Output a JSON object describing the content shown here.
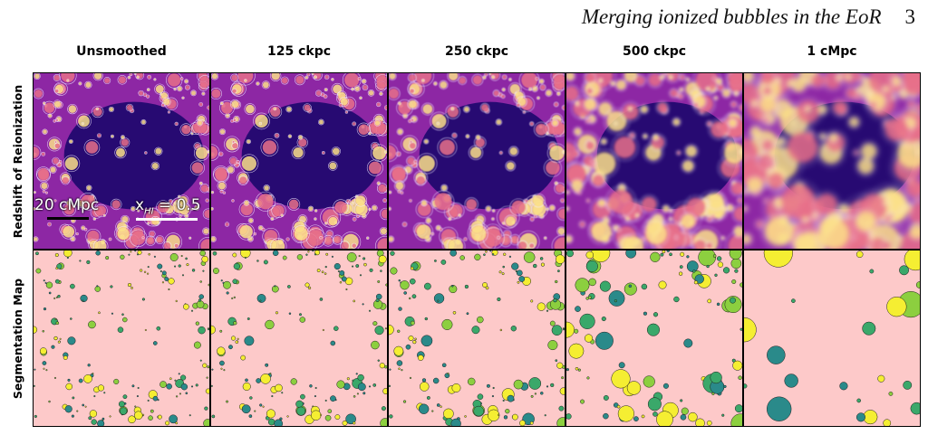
{
  "header": {
    "title": "Merging ionized bubbles in the EoR",
    "page_number": "3"
  },
  "columns": [
    {
      "label": "Unsmoothed",
      "smoothing": 0
    },
    {
      "label": "125 ckpc",
      "smoothing": 0.25
    },
    {
      "label": "250 ckpc",
      "smoothing": 0.5
    },
    {
      "label": "500 ckpc",
      "smoothing": 1.5
    },
    {
      "label": "1 cMpc",
      "smoothing": 3
    }
  ],
  "rows": [
    {
      "label": "Redshift of Reionization"
    },
    {
      "label": "Segmentation Map"
    }
  ],
  "annotations": {
    "scale_bar_label": "20 cMpc",
    "contour_label": "x",
    "contour_label_sub": "HI",
    "contour_label_value": " = 0.5"
  },
  "colors": {
    "reion_dark": "#220870",
    "reion_mid": "#8d27a4",
    "reion_bright": "#fbe08a",
    "contour": "#f2eaff",
    "seg_background": "#fdc9c9",
    "seg_yellow": "#f5ee32",
    "seg_lime": "#8ccf3f",
    "seg_green": "#3aa86a",
    "seg_teal": "#2a8a8a"
  }
}
